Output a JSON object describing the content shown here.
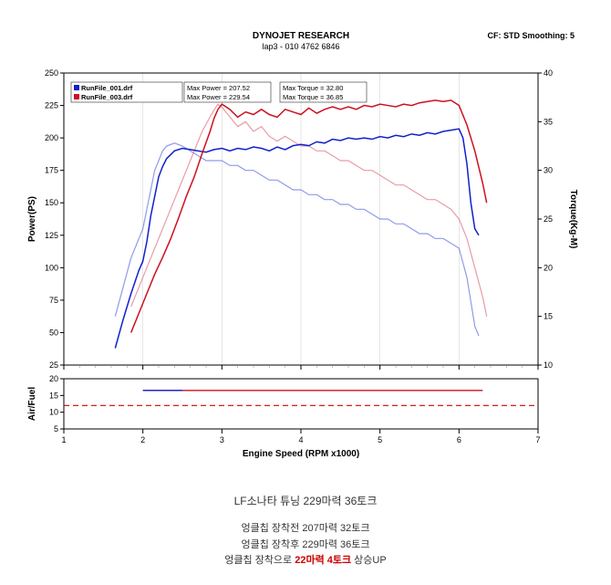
{
  "header": {
    "title": "DYNOJET RESEARCH",
    "subtitle": "lap3 - 010 4762 6846",
    "cf": "CF: STD  Smoothing: 5"
  },
  "legend": {
    "run1": {
      "file": "RunFile_001.drf",
      "power": "Max Power = 207.52",
      "torque": "Max Torque = 32.80",
      "color": "#1020cc"
    },
    "run2": {
      "file": "RunFile_003.drf",
      "power": "Max Power = 229.54",
      "torque": "Max Torque = 36.85",
      "color": "#cc1020"
    }
  },
  "main_chart": {
    "type": "line_dual_y",
    "xlabel": "Engine Speed (RPM x1000)",
    "ylabel_left": "Power(PS)",
    "ylabel_right": "Torque(Kg-M)",
    "xlim": [
      1,
      7
    ],
    "xtick_step": 1,
    "ylim_left": [
      25,
      250
    ],
    "yticks_left": [
      25,
      50,
      75,
      100,
      125,
      150,
      175,
      200,
      225,
      250
    ],
    "ylim_right": [
      10,
      40
    ],
    "yticks_right": [
      10,
      15,
      20,
      25,
      30,
      35,
      40
    ],
    "grid_color": "#000000",
    "border_color": "#000000",
    "background": "#ffffff",
    "minor_tick_color": "#808080",
    "power_run1_color": "#1020cc",
    "power_run2_color": "#cc1020",
    "torque_run1_color": "#6070e0",
    "torque_run2_color": "#e07080",
    "power_run1": [
      [
        1.65,
        38
      ],
      [
        1.75,
        60
      ],
      [
        1.85,
        80
      ],
      [
        1.95,
        98
      ],
      [
        2.0,
        105
      ],
      [
        2.05,
        120
      ],
      [
        2.1,
        140
      ],
      [
        2.15,
        155
      ],
      [
        2.2,
        170
      ],
      [
        2.25,
        178
      ],
      [
        2.3,
        184
      ],
      [
        2.4,
        190
      ],
      [
        2.5,
        192
      ],
      [
        2.6,
        191
      ],
      [
        2.7,
        190
      ],
      [
        2.8,
        189
      ],
      [
        2.9,
        191
      ],
      [
        3.0,
        192
      ],
      [
        3.1,
        190
      ],
      [
        3.2,
        192
      ],
      [
        3.3,
        191
      ],
      [
        3.4,
        193
      ],
      [
        3.5,
        192
      ],
      [
        3.6,
        190
      ],
      [
        3.7,
        193
      ],
      [
        3.8,
        191
      ],
      [
        3.9,
        194
      ],
      [
        4.0,
        195
      ],
      [
        4.1,
        194
      ],
      [
        4.2,
        197
      ],
      [
        4.3,
        196
      ],
      [
        4.4,
        199
      ],
      [
        4.5,
        198
      ],
      [
        4.6,
        200
      ],
      [
        4.7,
        199
      ],
      [
        4.8,
        200
      ],
      [
        4.9,
        199
      ],
      [
        5.0,
        201
      ],
      [
        5.1,
        200
      ],
      [
        5.2,
        202
      ],
      [
        5.3,
        201
      ],
      [
        5.4,
        203
      ],
      [
        5.5,
        202
      ],
      [
        5.6,
        204
      ],
      [
        5.7,
        203
      ],
      [
        5.8,
        205
      ],
      [
        5.9,
        206
      ],
      [
        6.0,
        207
      ],
      [
        6.05,
        200
      ],
      [
        6.1,
        180
      ],
      [
        6.15,
        150
      ],
      [
        6.2,
        130
      ],
      [
        6.25,
        125
      ]
    ],
    "power_run2": [
      [
        1.85,
        50
      ],
      [
        1.95,
        65
      ],
      [
        2.05,
        80
      ],
      [
        2.15,
        95
      ],
      [
        2.25,
        108
      ],
      [
        2.35,
        122
      ],
      [
        2.45,
        138
      ],
      [
        2.55,
        155
      ],
      [
        2.65,
        170
      ],
      [
        2.75,
        188
      ],
      [
        2.85,
        205
      ],
      [
        2.9,
        215
      ],
      [
        2.95,
        222
      ],
      [
        3.0,
        226
      ],
      [
        3.1,
        222
      ],
      [
        3.2,
        216
      ],
      [
        3.3,
        220
      ],
      [
        3.4,
        218
      ],
      [
        3.5,
        222
      ],
      [
        3.6,
        218
      ],
      [
        3.7,
        216
      ],
      [
        3.8,
        222
      ],
      [
        3.9,
        220
      ],
      [
        4.0,
        218
      ],
      [
        4.1,
        223
      ],
      [
        4.2,
        219
      ],
      [
        4.3,
        222
      ],
      [
        4.4,
        224
      ],
      [
        4.5,
        222
      ],
      [
        4.6,
        224
      ],
      [
        4.7,
        222
      ],
      [
        4.8,
        225
      ],
      [
        4.9,
        224
      ],
      [
        5.0,
        226
      ],
      [
        5.1,
        225
      ],
      [
        5.2,
        224
      ],
      [
        5.3,
        226
      ],
      [
        5.4,
        225
      ],
      [
        5.5,
        227
      ],
      [
        5.6,
        228
      ],
      [
        5.7,
        229
      ],
      [
        5.8,
        228
      ],
      [
        5.9,
        229
      ],
      [
        6.0,
        225
      ],
      [
        6.1,
        210
      ],
      [
        6.2,
        190
      ],
      [
        6.3,
        165
      ],
      [
        6.35,
        150
      ]
    ],
    "torque_run1": [
      [
        1.65,
        15
      ],
      [
        1.75,
        18
      ],
      [
        1.85,
        21
      ],
      [
        1.95,
        23
      ],
      [
        2.0,
        24
      ],
      [
        2.05,
        26
      ],
      [
        2.1,
        28
      ],
      [
        2.15,
        30
      ],
      [
        2.2,
        31
      ],
      [
        2.25,
        32
      ],
      [
        2.3,
        32.5
      ],
      [
        2.4,
        32.8
      ],
      [
        2.5,
        32.5
      ],
      [
        2.6,
        32
      ],
      [
        2.7,
        31.5
      ],
      [
        2.8,
        31
      ],
      [
        2.9,
        31
      ],
      [
        3.0,
        31
      ],
      [
        3.1,
        30.5
      ],
      [
        3.2,
        30.5
      ],
      [
        3.3,
        30
      ],
      [
        3.4,
        30
      ],
      [
        3.5,
        29.5
      ],
      [
        3.6,
        29
      ],
      [
        3.7,
        29
      ],
      [
        3.8,
        28.5
      ],
      [
        3.9,
        28
      ],
      [
        4.0,
        28
      ],
      [
        4.1,
        27.5
      ],
      [
        4.2,
        27.5
      ],
      [
        4.3,
        27
      ],
      [
        4.4,
        27
      ],
      [
        4.5,
        26.5
      ],
      [
        4.6,
        26.5
      ],
      [
        4.7,
        26
      ],
      [
        4.8,
        26
      ],
      [
        4.9,
        25.5
      ],
      [
        5.0,
        25
      ],
      [
        5.1,
        25
      ],
      [
        5.2,
        24.5
      ],
      [
        5.3,
        24.5
      ],
      [
        5.4,
        24
      ],
      [
        5.5,
        23.5
      ],
      [
        5.6,
        23.5
      ],
      [
        5.7,
        23
      ],
      [
        5.8,
        23
      ],
      [
        5.9,
        22.5
      ],
      [
        6.0,
        22
      ],
      [
        6.1,
        19
      ],
      [
        6.2,
        14
      ],
      [
        6.25,
        13
      ]
    ],
    "torque_run2": [
      [
        1.85,
        16
      ],
      [
        1.95,
        18
      ],
      [
        2.05,
        20
      ],
      [
        2.15,
        22
      ],
      [
        2.25,
        24
      ],
      [
        2.35,
        26
      ],
      [
        2.45,
        28
      ],
      [
        2.55,
        30
      ],
      [
        2.65,
        32
      ],
      [
        2.75,
        34
      ],
      [
        2.85,
        35.5
      ],
      [
        2.9,
        36.2
      ],
      [
        2.95,
        36.8
      ],
      [
        3.0,
        36.5
      ],
      [
        3.1,
        35.5
      ],
      [
        3.2,
        34.5
      ],
      [
        3.3,
        35
      ],
      [
        3.4,
        34
      ],
      [
        3.5,
        34.5
      ],
      [
        3.6,
        33.5
      ],
      [
        3.7,
        33
      ],
      [
        3.8,
        33.5
      ],
      [
        3.9,
        33
      ],
      [
        4.0,
        32.5
      ],
      [
        4.1,
        32.5
      ],
      [
        4.2,
        32
      ],
      [
        4.3,
        32
      ],
      [
        4.4,
        31.5
      ],
      [
        4.5,
        31
      ],
      [
        4.6,
        31
      ],
      [
        4.7,
        30.5
      ],
      [
        4.8,
        30
      ],
      [
        4.9,
        30
      ],
      [
        5.0,
        29.5
      ],
      [
        5.1,
        29
      ],
      [
        5.2,
        28.5
      ],
      [
        5.3,
        28.5
      ],
      [
        5.4,
        28
      ],
      [
        5.5,
        27.5
      ],
      [
        5.6,
        27
      ],
      [
        5.7,
        27
      ],
      [
        5.8,
        26.5
      ],
      [
        5.9,
        26
      ],
      [
        6.0,
        25
      ],
      [
        6.1,
        23
      ],
      [
        6.2,
        20
      ],
      [
        6.3,
        17
      ],
      [
        6.35,
        15
      ]
    ]
  },
  "af_chart": {
    "type": "line",
    "ylabel": "Air/Fuel",
    "ylim": [
      5,
      20
    ],
    "yticks": [
      5,
      10,
      15,
      20
    ],
    "ref_line_color": "#cc0000",
    "ref_value": 12,
    "run1_color": "#1020cc",
    "run2_color": "#cc1020",
    "data_run1": [
      [
        2.0,
        16.5
      ],
      [
        2.5,
        16.5
      ]
    ],
    "data_run2": [
      [
        2.0,
        16.5
      ],
      [
        6.3,
        16.5
      ]
    ]
  },
  "captions": {
    "title": "LF소나타 튜닝 229마력 36토크",
    "before": "엉클칩 장착전 207마력 32토크",
    "after": "엉클칩 장착후 229마력 36토크",
    "gain_prefix": "엉클칩 장착으로 ",
    "gain_value": "22마력 4토크",
    "gain_suffix": " 상승UP"
  }
}
